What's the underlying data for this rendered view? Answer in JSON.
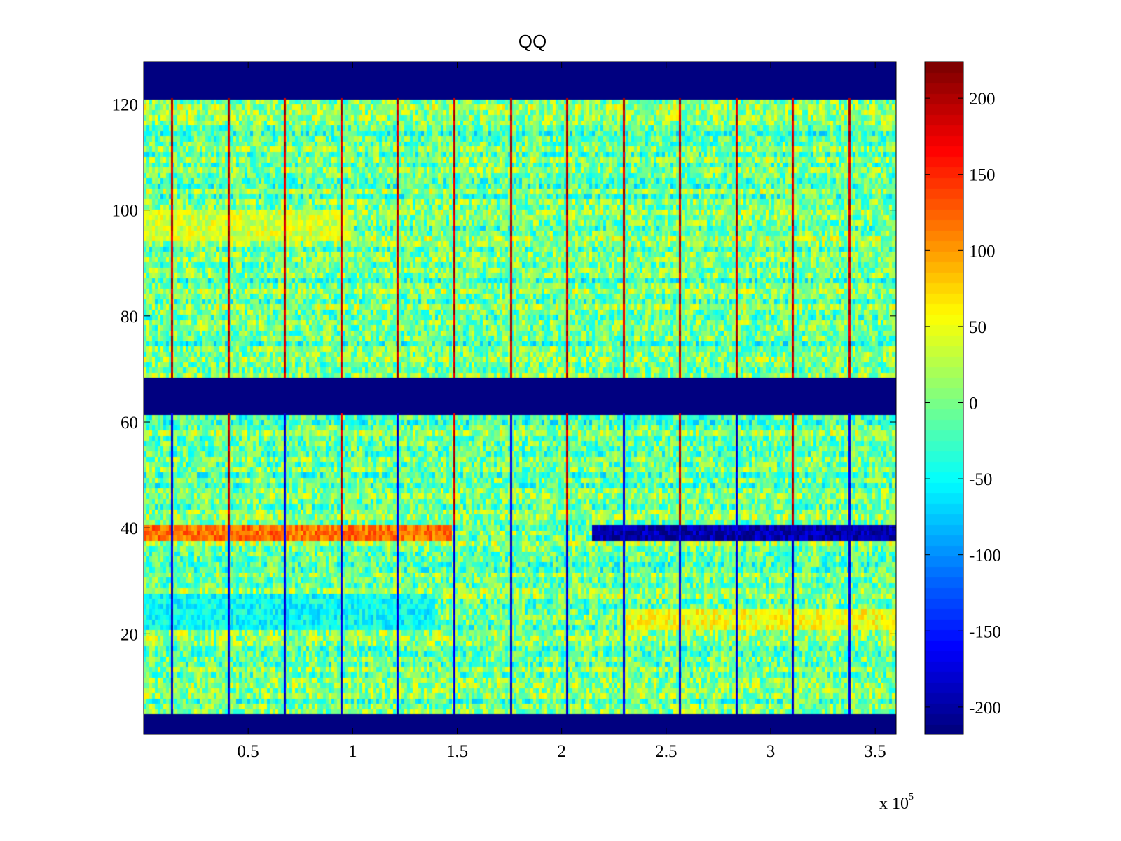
{
  "chart_data": {
    "type": "heatmap",
    "title": "QQ",
    "xlabel": "",
    "ylabel": "",
    "x_multiplier": "x 10",
    "x_multiplier_exponent": "5",
    "xlim": [
      0,
      3.6
    ],
    "ylim": [
      1,
      128
    ],
    "x_ticks": [
      0.5,
      1,
      1.5,
      2,
      2.5,
      3,
      3.5
    ],
    "x_tick_labels": [
      "0.5",
      "1",
      "1.5",
      "2",
      "2.5",
      "3",
      "3.5"
    ],
    "y_ticks": [
      20,
      40,
      60,
      80,
      100,
      120
    ],
    "y_tick_labels": [
      "20",
      "40",
      "60",
      "80",
      "100",
      "120"
    ],
    "colorbar": {
      "colormap": "jet",
      "range": [
        -218,
        224
      ],
      "ticks": [
        -200,
        -150,
        -100,
        -50,
        0,
        50,
        100,
        150,
        200
      ],
      "tick_labels": [
        "-200",
        "-150",
        "-100",
        "-50",
        "0",
        "50",
        "100",
        "150",
        "200"
      ]
    },
    "empty_row_bands": [
      {
        "from": 1,
        "to": 4,
        "value": -218
      },
      {
        "from": 62,
        "to": 68,
        "value": -218
      },
      {
        "from": 122,
        "to": 128,
        "value": -218
      }
    ],
    "vertical_spike_lines_x": [
      0.135,
      0.405,
      0.675,
      0.945,
      1.215,
      1.485,
      1.755,
      2.025,
      2.295,
      2.565,
      2.835,
      3.105,
      3.375
    ],
    "notable_features": [
      {
        "row_range": [
          38,
          40
        ],
        "x_range": [
          0,
          1.48
        ],
        "value": 120,
        "description": "high band"
      },
      {
        "row_range": [
          38,
          40
        ],
        "x_range": [
          2.15,
          3.6
        ],
        "value": -200,
        "description": "low band"
      },
      {
        "row_range": [
          21,
          24
        ],
        "x_range": [
          2.3,
          3.6
        ],
        "value": 55,
        "description": "elevated band"
      },
      {
        "row_range": [
          21,
          27
        ],
        "x_range": [
          0,
          1.4
        ],
        "value": -50,
        "description": "depressed band"
      },
      {
        "row_range": [
          95,
          100
        ],
        "x_range": [
          0,
          1.0
        ],
        "value": 40,
        "description": "elevated band"
      }
    ],
    "background_value_range": [
      -60,
      50
    ]
  }
}
